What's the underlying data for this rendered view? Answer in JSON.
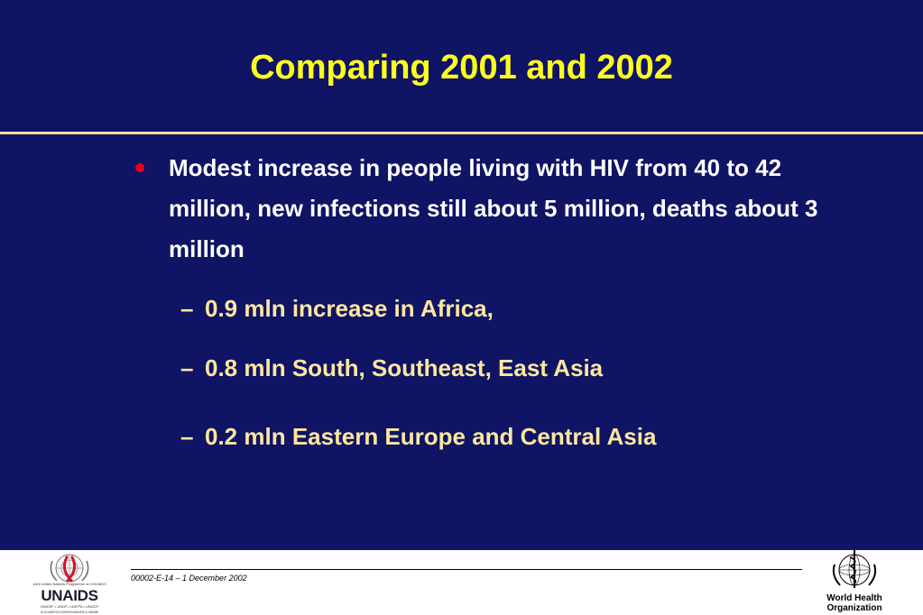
{
  "slide": {
    "title": "Comparing 2001 and 2002",
    "bullet": "Modest increase in people living with HIV from 40 to 42 million, new infections still about 5 million, deaths about 3 million",
    "sub_dash": "–",
    "sub_items": [
      "0.9 mln increase in Africa,",
      "0.8 mln South, Southeast, East Asia",
      "0.2 mln Eastern Europe and Central Asia"
    ]
  },
  "footer": {
    "code": "00002-E-14 – 1 December 2002",
    "left_logo": {
      "name": "unaids-logo",
      "word": "UNAIDS",
      "tagline": "Joint United Nations Programme on HIV/AIDS",
      "cosponsors_1": "UNICEF • UNDP • UNFPA • UNDCP",
      "cosponsors_2": "ILO•UNESCO•WHO•WORLD BANK"
    },
    "right_logo": {
      "name": "who-logo",
      "line1": "World Health",
      "line2": "Organization"
    }
  },
  "colors": {
    "background": "#0f1464",
    "title": "#ffff1e",
    "rule": "#f4df9c",
    "bullet_text": "#ffffff",
    "sub_text": "#fde7a0",
    "bullet_dot": "#e8001c"
  }
}
